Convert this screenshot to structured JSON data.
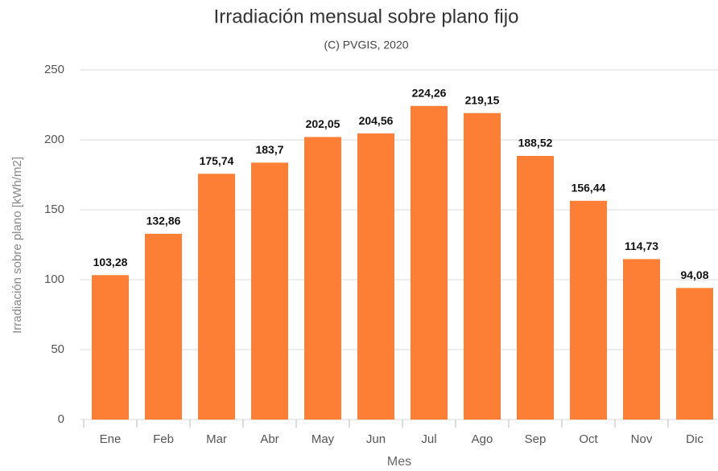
{
  "chart_data": {
    "type": "bar",
    "title": "Irradiación mensual sobre plano fijo",
    "subtitle": "(C) PVGIS, 2020",
    "x_label": "Mes",
    "y_label": "Irradiación sobre plano [kWh/m2]",
    "categories": [
      "Ene",
      "Feb",
      "Mar",
      "Abr",
      "May",
      "Jun",
      "Jul",
      "Ago",
      "Sep",
      "Oct",
      "Nov",
      "Dic"
    ],
    "values": [
      103.28,
      132.86,
      175.74,
      183.7,
      202.05,
      204.56,
      224.26,
      219.15,
      188.52,
      156.44,
      114.73,
      94.08
    ],
    "value_labels": [
      "103,28",
      "132,86",
      "175,74",
      "183,7",
      "202,05",
      "204,56",
      "224,26",
      "219,15",
      "188,52",
      "156,44",
      "114,73",
      "94,08"
    ],
    "color": "#fd7f35",
    "ylim": [
      0,
      250
    ],
    "yticks": [
      0,
      50,
      100,
      150,
      200,
      250
    ],
    "grid": true
  }
}
